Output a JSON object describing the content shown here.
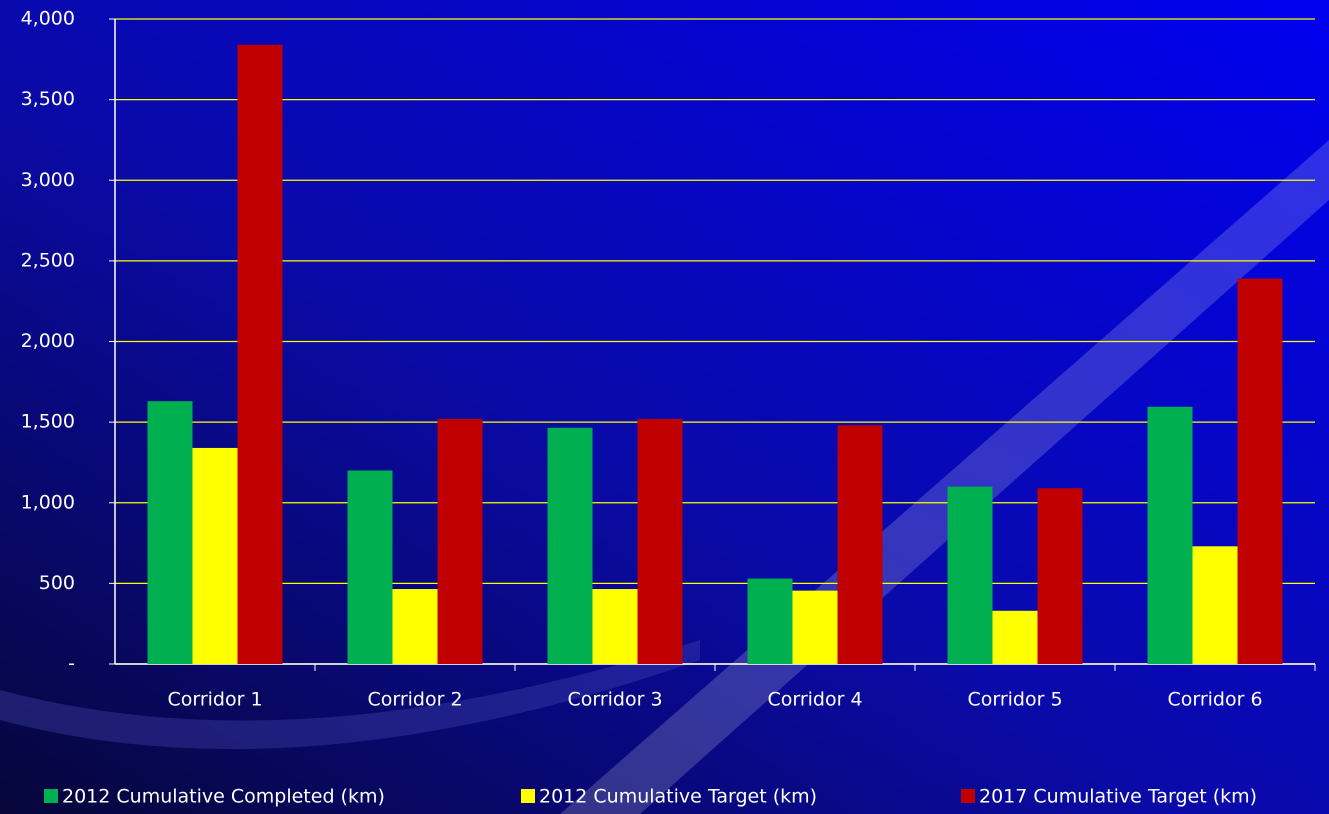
{
  "chart_data": {
    "type": "bar",
    "categories": [
      "Corridor 1",
      "Corridor 2",
      "Corridor 3",
      "Corridor 4",
      "Corridor 5",
      "Corridor 6"
    ],
    "series": [
      {
        "name": "2012 Cumulative Completed (km)",
        "color": "#00b050",
        "values": [
          1630,
          1200,
          1465,
          530,
          1100,
          1595
        ]
      },
      {
        "name": "2012 Cumulative Target (km)",
        "color": "#ffff00",
        "values": [
          1340,
          465,
          465,
          455,
          330,
          730
        ]
      },
      {
        "name": "2017 Cumulative Target (km)",
        "color": "#c00000",
        "values": [
          3840,
          1520,
          1520,
          1480,
          1090,
          2390
        ]
      }
    ],
    "ylim": [
      0,
      4000
    ],
    "yticks": [
      {
        "value": 0,
        "label": "-"
      },
      500,
      {
        "value": 1000,
        "label": "1,000"
      },
      {
        "value": 1500,
        "label": "1,500"
      },
      {
        "value": 2000,
        "label": "2,000"
      },
      {
        "value": 2500,
        "label": "2,500"
      },
      {
        "value": 3000,
        "label": "3,000"
      },
      {
        "value": 3500,
        "label": "3,500"
      },
      {
        "value": 4000,
        "label": "4,000"
      }
    ],
    "grid": true,
    "grid_color": "#ffff00",
    "legend": "bottom"
  }
}
